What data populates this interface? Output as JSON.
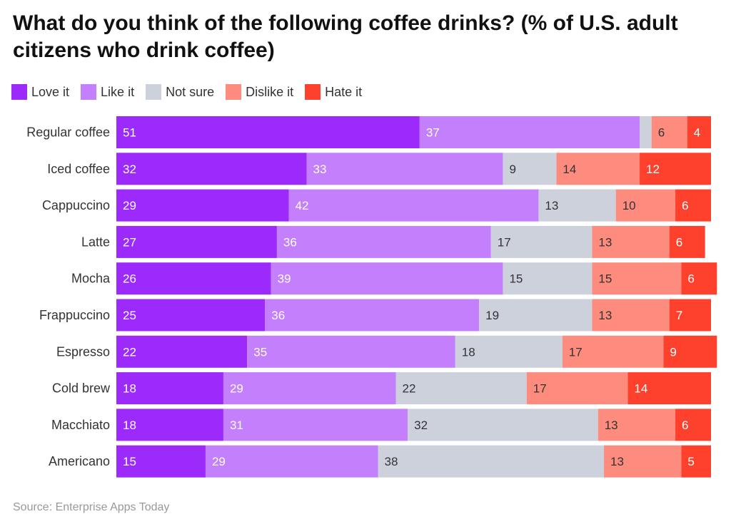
{
  "chart_data": {
    "type": "bar",
    "orientation": "horizontal",
    "stacked": true,
    "title": "What do you think of the following coffee drinks? (% of U.S. adult citizens who drink coffee)",
    "categories": [
      "Regular coffee",
      "Iced coffee",
      "Cappuccino",
      "Latte",
      "Mocha",
      "Frappuccino",
      "Espresso",
      "Cold brew",
      "Macchiato",
      "Americano"
    ],
    "series": [
      {
        "name": "Love it",
        "color": "#9b2afb",
        "values": [
          51,
          32,
          29,
          27,
          26,
          25,
          22,
          18,
          18,
          15
        ]
      },
      {
        "name": "Like it",
        "color": "#c47ffd",
        "values": [
          37,
          33,
          42,
          36,
          39,
          36,
          35,
          29,
          31,
          29
        ]
      },
      {
        "name": "Not sure",
        "color": "#cdd1dc",
        "values": [
          2,
          9,
          13,
          17,
          15,
          19,
          18,
          22,
          32,
          38
        ]
      },
      {
        "name": "Dislike it",
        "color": "#fe8c7e",
        "values": [
          6,
          14,
          10,
          13,
          15,
          13,
          17,
          17,
          13,
          13
        ]
      },
      {
        "name": "Hate it",
        "color": "#fe412c",
        "values": [
          4,
          12,
          6,
          6,
          6,
          7,
          9,
          14,
          6,
          5
        ]
      }
    ],
    "xlim": [
      0,
      100
    ],
    "legend": "top-left",
    "grid": false,
    "source": "Source: Enterprise Apps Today"
  }
}
